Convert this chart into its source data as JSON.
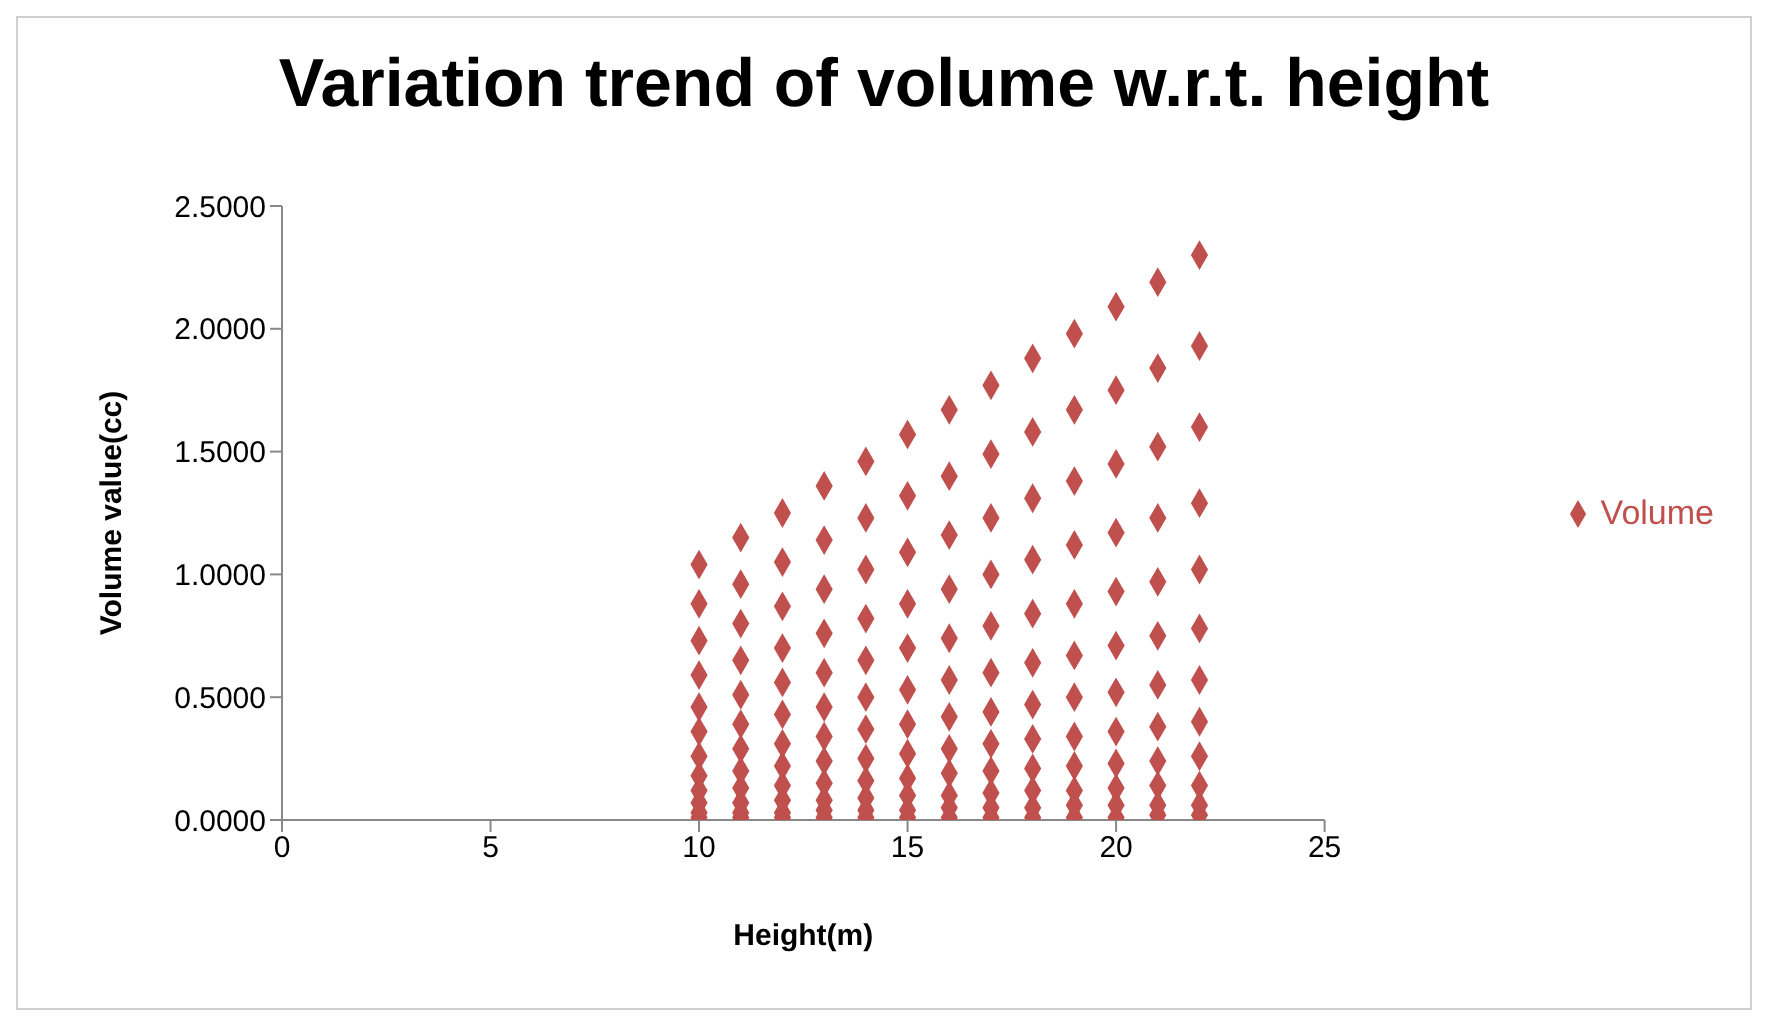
{
  "chart_data": {
    "type": "scatter",
    "title": "Variation trend of volume w.r.t. height",
    "xlabel": "Height(m)",
    "ylabel": "Volume value(cc)",
    "xlim": [
      0,
      25
    ],
    "xticks": [
      0,
      5,
      10,
      15,
      20,
      25
    ],
    "ylim": [
      0,
      2.5
    ],
    "yticks": [
      {
        "value": 0,
        "label": "0.0000"
      },
      {
        "value": 0.5,
        "label": "0.5000"
      },
      {
        "value": 1,
        "label": "1.0000"
      },
      {
        "value": 1.5,
        "label": "1.5000"
      },
      {
        "value": 2,
        "label": "2.0000"
      },
      {
        "value": 2.5,
        "label": "2.5000"
      }
    ],
    "grid": false,
    "legend": "right",
    "marker": "diamond",
    "series": [
      {
        "name": "Volume",
        "color": "#c0504d",
        "x": [
          10,
          10,
          10,
          10,
          10,
          10,
          10,
          10,
          10,
          10,
          10,
          10,
          11,
          11,
          11,
          11,
          11,
          11,
          11,
          11,
          11,
          11,
          11,
          11,
          12,
          12,
          12,
          12,
          12,
          12,
          12,
          12,
          12,
          12,
          12,
          12,
          13,
          13,
          13,
          13,
          13,
          13,
          13,
          13,
          13,
          13,
          13,
          13,
          14,
          14,
          14,
          14,
          14,
          14,
          14,
          14,
          14,
          14,
          14,
          14,
          15,
          15,
          15,
          15,
          15,
          15,
          15,
          15,
          15,
          15,
          15,
          15,
          16,
          16,
          16,
          16,
          16,
          16,
          16,
          16,
          16,
          16,
          16,
          16,
          17,
          17,
          17,
          17,
          17,
          17,
          17,
          17,
          17,
          17,
          17,
          17,
          18,
          18,
          18,
          18,
          18,
          18,
          18,
          18,
          18,
          18,
          18,
          18,
          19,
          19,
          19,
          19,
          19,
          19,
          19,
          19,
          19,
          19,
          19,
          19,
          20,
          20,
          20,
          20,
          20,
          20,
          20,
          20,
          20,
          20,
          20,
          20,
          21,
          21,
          21,
          21,
          21,
          21,
          21,
          21,
          21,
          21,
          21,
          21,
          22,
          22,
          22,
          22,
          22,
          22,
          22,
          22,
          22,
          22,
          22,
          22
        ],
        "values": [
          0.01,
          0.03,
          0.07,
          0.12,
          0.18,
          0.26,
          0.36,
          0.46,
          0.59,
          0.73,
          0.88,
          1.04,
          0.01,
          0.03,
          0.07,
          0.13,
          0.2,
          0.29,
          0.39,
          0.51,
          0.65,
          0.8,
          0.96,
          1.15,
          0.01,
          0.03,
          0.08,
          0.14,
          0.22,
          0.31,
          0.43,
          0.56,
          0.7,
          0.87,
          1.05,
          1.25,
          0.01,
          0.04,
          0.08,
          0.15,
          0.24,
          0.34,
          0.46,
          0.6,
          0.76,
          0.94,
          1.14,
          1.36,
          0.01,
          0.04,
          0.09,
          0.16,
          0.25,
          0.37,
          0.5,
          0.65,
          0.82,
          1.02,
          1.23,
          1.46,
          0.01,
          0.04,
          0.1,
          0.17,
          0.27,
          0.39,
          0.53,
          0.7,
          0.88,
          1.09,
          1.32,
          1.57,
          0.01,
          0.05,
          0.1,
          0.19,
          0.29,
          0.42,
          0.57,
          0.74,
          0.94,
          1.16,
          1.4,
          1.67,
          0.01,
          0.05,
          0.11,
          0.2,
          0.31,
          0.44,
          0.6,
          0.79,
          1.0,
          1.23,
          1.49,
          1.77,
          0.01,
          0.05,
          0.12,
          0.21,
          0.33,
          0.47,
          0.64,
          0.84,
          1.06,
          1.31,
          1.58,
          1.88,
          0.01,
          0.06,
          0.12,
          0.22,
          0.34,
          0.5,
          0.67,
          0.88,
          1.12,
          1.38,
          1.67,
          1.98,
          0.01,
          0.06,
          0.13,
          0.23,
          0.36,
          0.52,
          0.71,
          0.93,
          1.17,
          1.45,
          1.75,
          2.09,
          0.02,
          0.06,
          0.14,
          0.24,
          0.38,
          0.55,
          0.75,
          0.97,
          1.23,
          1.52,
          1.84,
          2.19,
          0.02,
          0.06,
          0.14,
          0.26,
          0.4,
          0.57,
          0.78,
          1.02,
          1.29,
          1.6,
          1.93,
          2.3
        ]
      }
    ]
  }
}
